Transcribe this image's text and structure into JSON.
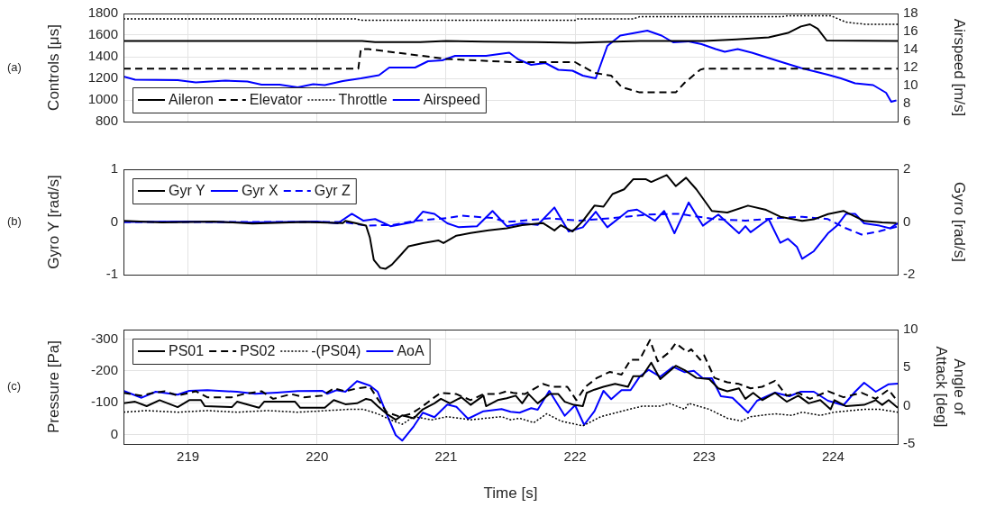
{
  "chart_data": [
    {
      "type": "line",
      "ylabel": "Controls [μs]",
      "y2label": "Airspeed [m/s]",
      "annotations": [
        "(a)"
      ],
      "xlim": [
        218.5,
        224.5
      ],
      "xticks": [
        219,
        220,
        221,
        222,
        223,
        224
      ],
      "ylim": [
        800,
        1800
      ],
      "yticks": [
        800,
        1000,
        1200,
        1400,
        1600,
        1800
      ],
      "y2lim": [
        6,
        18
      ],
      "y2ticks": [
        6,
        8,
        10,
        12,
        14,
        16,
        18
      ],
      "grid": true,
      "legend": "bottom left",
      "tick_labels": "y",
      "series": [
        {
          "name": "Aileron",
          "color": "#000000",
          "line_style": "solid",
          "x": [
            218.5,
            220.35,
            220.45,
            220.8,
            221.0,
            221.3,
            221.7,
            222.0,
            222.5,
            223.0,
            223.25,
            223.5,
            223.65,
            223.75,
            223.82,
            223.88,
            223.95,
            224.5
          ],
          "values": [
            1545,
            1545,
            1535,
            1535,
            1545,
            1540,
            1535,
            1530,
            1545,
            1545,
            1560,
            1580,
            1620,
            1680,
            1700,
            1660,
            1550,
            1545
          ]
        },
        {
          "name": "Elevator",
          "color": "#000000",
          "line_style": "dashed",
          "x": [
            218.5,
            220.32,
            220.34,
            220.4,
            221.0,
            221.52,
            222.0,
            222.15,
            222.28,
            222.36,
            222.5,
            222.78,
            222.85,
            222.97,
            223.0,
            224.5
          ],
          "values": [
            1290,
            1290,
            1470,
            1470,
            1380,
            1350,
            1350,
            1250,
            1225,
            1120,
            1070,
            1070,
            1160,
            1280,
            1290,
            1290
          ]
        },
        {
          "name": "Throttle",
          "color": "#000000",
          "line_style": "dotted",
          "x": [
            218.5,
            220.3,
            220.35,
            222.0,
            222.02,
            222.45,
            222.5,
            223.6,
            223.65,
            223.98,
            224.1,
            224.25,
            224.5
          ],
          "values": [
            1750,
            1750,
            1737,
            1737,
            1750,
            1750,
            1770,
            1770,
            1780,
            1780,
            1720,
            1700,
            1700
          ]
        },
        {
          "name": "Airspeed",
          "color": "#0000ff",
          "line_style": "solid",
          "axis": "y2",
          "x": [
            218.5,
            218.59,
            218.92,
            219.06,
            219.29,
            219.46,
            219.57,
            219.71,
            219.85,
            219.97,
            220.06,
            220.2,
            220.34,
            220.48,
            220.56,
            220.76,
            220.86,
            220.97,
            221.07,
            221.31,
            221.49,
            221.56,
            221.66,
            221.77,
            221.87,
            221.98,
            222.06,
            222.16,
            222.25,
            222.35,
            222.56,
            222.67,
            222.76,
            222.88,
            222.98,
            223.09,
            223.16,
            223.26,
            223.37,
            223.58,
            223.75,
            223.96,
            224.06,
            224.17,
            224.31,
            224.41,
            224.45,
            224.49
          ],
          "values": [
            11.0,
            10.65,
            10.6,
            10.35,
            10.55,
            10.45,
            10.1,
            10.1,
            9.8,
            10.15,
            10.05,
            10.5,
            10.8,
            11.15,
            12.0,
            12.0,
            12.7,
            12.8,
            13.3,
            13.3,
            13.65,
            12.9,
            12.3,
            12.5,
            11.75,
            11.65,
            11.1,
            10.8,
            14.4,
            15.55,
            16.1,
            15.55,
            14.8,
            14.9,
            14.6,
            14.05,
            13.75,
            14.05,
            13.65,
            12.7,
            11.95,
            11.2,
            10.8,
            10.25,
            10.05,
            9.2,
            8.2,
            8.35
          ]
        }
      ]
    },
    {
      "type": "line",
      "ylabel": "Gyro Y [rad/s]",
      "y2label": "Gyro [rad/s]",
      "annotations": [
        "(b)"
      ],
      "xlim": [
        218.5,
        224.5
      ],
      "xticks": [
        219,
        220,
        221,
        222,
        223,
        224
      ],
      "ylim": [
        -1,
        1
      ],
      "yticks": [
        -1,
        0,
        1
      ],
      "y2lim": [
        -2,
        2
      ],
      "y2ticks": [
        -2,
        0,
        2
      ],
      "grid": true,
      "legend": "top left",
      "tick_labels": "y",
      "series": [
        {
          "name": "Gyr Y",
          "color": "#000000",
          "line_style": "solid",
          "x": [
            218.5,
            218.8,
            219.2,
            219.5,
            219.9,
            220.2,
            220.22,
            220.38,
            220.41,
            220.44,
            220.49,
            220.53,
            220.58,
            220.64,
            220.71,
            220.82,
            220.94,
            220.98,
            221.08,
            221.19,
            221.33,
            221.47,
            221.59,
            221.75,
            221.84,
            221.89,
            221.98,
            222.06,
            222.15,
            222.22,
            222.29,
            222.38,
            222.45,
            222.55,
            222.59,
            222.71,
            222.78,
            222.86,
            222.94,
            223.06,
            223.18,
            223.34,
            223.48,
            223.59,
            223.76,
            223.85,
            223.96,
            224.08,
            224.24,
            224.38,
            224.49
          ],
          "values": [
            0.02,
            -0.01,
            0.01,
            -0.03,
            0.0,
            -0.02,
            0.02,
            -0.07,
            -0.3,
            -0.72,
            -0.87,
            -0.89,
            -0.81,
            -0.65,
            -0.46,
            -0.4,
            -0.35,
            -0.4,
            -0.26,
            -0.21,
            -0.16,
            -0.12,
            -0.06,
            -0.02,
            -0.16,
            -0.06,
            -0.18,
            0.02,
            0.31,
            0.29,
            0.53,
            0.62,
            0.81,
            0.81,
            0.76,
            0.89,
            0.68,
            0.84,
            0.62,
            0.21,
            0.18,
            0.31,
            0.23,
            0.1,
            0.02,
            0.05,
            0.15,
            0.21,
            0.02,
            -0.01,
            -0.02
          ]
        },
        {
          "name": "Gyr X",
          "color": "#0000ff",
          "line_style": "solid",
          "axis": "y2",
          "x": [
            218.5,
            219.0,
            219.5,
            220.0,
            220.16,
            220.27,
            220.36,
            220.45,
            220.57,
            220.75,
            220.82,
            220.91,
            221.01,
            221.1,
            221.24,
            221.36,
            221.47,
            221.59,
            221.71,
            221.84,
            221.95,
            222.06,
            222.16,
            222.25,
            222.41,
            222.48,
            222.62,
            222.69,
            222.77,
            222.88,
            222.99,
            223.11,
            223.27,
            223.32,
            223.36,
            223.5,
            223.59,
            223.65,
            223.72,
            223.76,
            223.85,
            223.96,
            224.03,
            224.1,
            224.17,
            224.24,
            224.36,
            224.44,
            224.5
          ],
          "values": [
            0.0,
            0.02,
            -0.02,
            0.02,
            -0.05,
            0.31,
            0.05,
            0.11,
            -0.16,
            0.0,
            0.39,
            0.31,
            -0.05,
            -0.2,
            -0.16,
            0.42,
            -0.16,
            -0.05,
            -0.11,
            0.55,
            -0.36,
            -0.2,
            0.39,
            -0.2,
            0.42,
            0.47,
            0.05,
            0.42,
            -0.43,
            0.74,
            -0.14,
            0.28,
            -0.43,
            -0.16,
            -0.39,
            0.11,
            -0.79,
            -0.64,
            -0.95,
            -1.4,
            -1.11,
            -0.43,
            -0.14,
            0.31,
            0.31,
            -0.05,
            -0.14,
            -0.24,
            -0.05
          ]
        },
        {
          "name": "Gyr Z",
          "color": "#0000ff",
          "line_style": "dashed",
          "axis": "y2",
          "x": [
            218.5,
            220.2,
            220.38,
            220.59,
            220.77,
            221.01,
            221.12,
            221.36,
            221.47,
            221.8,
            222.03,
            222.27,
            222.57,
            222.8,
            223.08,
            223.32,
            223.55,
            223.76,
            223.96,
            224.08,
            224.22,
            224.36,
            224.5
          ],
          "values": [
            0.0,
            0.0,
            -0.14,
            -0.11,
            0.05,
            0.15,
            0.24,
            0.15,
            0.0,
            0.14,
            0.05,
            0.14,
            0.28,
            0.31,
            0.11,
            0.05,
            0.14,
            0.2,
            0.11,
            -0.2,
            -0.48,
            -0.35,
            -0.17
          ]
        }
      ]
    },
    {
      "type": "line",
      "xlabel": "Time [s]",
      "ylabel": "Pressure [Pa]",
      "y2label": "Angle of Attack [deg]",
      "annotations": [
        "(c)"
      ],
      "xlim": [
        218.5,
        224.5
      ],
      "xticks": [
        219,
        220,
        221,
        222,
        223,
        224
      ],
      "ylim": [
        30,
        -330
      ],
      "yticks": [
        -300,
        -200,
        -100,
        0
      ],
      "y2lim": [
        -5,
        10
      ],
      "y2ticks": [
        -5,
        0,
        5,
        10
      ],
      "grid": true,
      "legend": "top left",
      "series": [
        {
          "name": "PS01",
          "color": "#000000",
          "line_style": "solid",
          "x": [
            218.5,
            218.59,
            218.68,
            218.78,
            218.92,
            219.01,
            219.1,
            219.13,
            219.34,
            219.38,
            219.55,
            219.59,
            219.83,
            219.87,
            220.06,
            220.13,
            220.22,
            220.31,
            220.38,
            220.42,
            220.47,
            220.54,
            220.61,
            220.66,
            220.75,
            220.82,
            220.91,
            220.96,
            221.03,
            221.12,
            221.19,
            221.29,
            221.31,
            221.4,
            221.47,
            221.54,
            221.59,
            221.64,
            221.71,
            221.8,
            221.87,
            221.92,
            221.99,
            222.06,
            222.09,
            222.15,
            222.22,
            222.31,
            222.41,
            222.45,
            222.52,
            222.59,
            222.66,
            222.78,
            222.85,
            222.94,
            223.04,
            223.11,
            223.18,
            223.27,
            223.32,
            223.38,
            223.45,
            223.55,
            223.64,
            223.73,
            223.81,
            223.9,
            223.98,
            224.01,
            224.1,
            224.24,
            224.33,
            224.38,
            224.43,
            224.5
          ],
          "values": [
            -98,
            -103,
            -89,
            -108,
            -86,
            -108,
            -108,
            -89,
            -86,
            -103,
            -84,
            -103,
            -103,
            -84,
            -84,
            -108,
            -95,
            -98,
            -112,
            -108,
            -89,
            -65,
            -46,
            -60,
            -51,
            -79,
            -98,
            -112,
            -98,
            -117,
            -93,
            -122,
            -89,
            -108,
            -114,
            -122,
            -98,
            -127,
            -98,
            -127,
            -127,
            -103,
            -93,
            -89,
            -131,
            -141,
            -150,
            -159,
            -150,
            -183,
            -183,
            -226,
            -174,
            -216,
            -202,
            -178,
            -174,
            -145,
            -136,
            -145,
            -112,
            -131,
            -108,
            -131,
            -103,
            -122,
            -98,
            -108,
            -79,
            -108,
            -89,
            -93,
            -108,
            -93,
            -108,
            -84
          ]
        },
        {
          "name": "PS02",
          "color": "#000000",
          "line_style": "dashed",
          "x": [
            218.5,
            218.64,
            218.73,
            218.82,
            218.92,
            219.06,
            219.15,
            219.34,
            219.43,
            219.57,
            219.66,
            219.8,
            219.9,
            220.04,
            220.13,
            220.22,
            220.31,
            220.41,
            220.47,
            220.54,
            220.64,
            220.73,
            220.82,
            220.91,
            220.96,
            221.08,
            221.19,
            221.29,
            221.4,
            221.47,
            221.52,
            221.61,
            221.75,
            221.82,
            221.94,
            222.01,
            222.08,
            222.17,
            222.27,
            222.36,
            222.43,
            222.5,
            222.58,
            222.64,
            222.73,
            222.78,
            222.87,
            222.9,
            222.97,
            223.0,
            223.08,
            223.18,
            223.27,
            223.36,
            223.45,
            223.55,
            223.64,
            223.73,
            223.82,
            223.96,
            224.08,
            224.22,
            224.33,
            224.43,
            224.5
          ],
          "values": [
            -131,
            -122,
            -131,
            -136,
            -122,
            -136,
            -117,
            -117,
            -127,
            -136,
            -112,
            -127,
            -117,
            -122,
            -145,
            -136,
            -145,
            -150,
            -112,
            -70,
            -56,
            -65,
            -89,
            -117,
            -131,
            -127,
            -108,
            -127,
            -127,
            -136,
            -131,
            -127,
            -159,
            -150,
            -150,
            -108,
            -150,
            -178,
            -197,
            -188,
            -235,
            -235,
            -297,
            -230,
            -259,
            -287,
            -259,
            -268,
            -235,
            -249,
            -178,
            -164,
            -159,
            -145,
            -150,
            -169,
            -122,
            -131,
            -112,
            -136,
            -117,
            -131,
            -112,
            -141,
            -103
          ]
        },
        {
          "name": "-(PS04)",
          "color": "#000000",
          "line_style": "dotted",
          "x": [
            218.5,
            218.68,
            218.92,
            219.15,
            219.38,
            219.62,
            219.85,
            220.08,
            220.24,
            220.36,
            220.47,
            220.57,
            220.66,
            220.75,
            220.89,
            221.01,
            221.19,
            221.43,
            221.5,
            221.57,
            221.68,
            221.78,
            221.89,
            222.06,
            222.2,
            222.38,
            222.52,
            222.66,
            222.73,
            222.85,
            222.88,
            223.04,
            223.18,
            223.29,
            223.36,
            223.55,
            223.68,
            223.76,
            223.9,
            224.01,
            224.24,
            224.36,
            224.5
          ],
          "values": [
            -70,
            -75,
            -70,
            -75,
            -70,
            -75,
            -70,
            -75,
            -79,
            -79,
            -65,
            -46,
            -32,
            -56,
            -46,
            -56,
            -46,
            -56,
            -46,
            -51,
            -37,
            -65,
            -42,
            -27,
            -56,
            -75,
            -89,
            -89,
            -98,
            -79,
            -98,
            -79,
            -51,
            -42,
            -56,
            -65,
            -60,
            -70,
            -60,
            -70,
            -79,
            -79,
            -70
          ]
        },
        {
          "name": "AoA",
          "color": "#0000ff",
          "line_style": "solid",
          "axis": "y2",
          "x": [
            218.5,
            218.64,
            218.75,
            218.92,
            219.01,
            219.15,
            219.38,
            219.52,
            219.69,
            219.85,
            220.04,
            220.08,
            220.15,
            220.22,
            220.31,
            220.41,
            220.47,
            220.54,
            220.61,
            220.66,
            220.75,
            220.82,
            220.91,
            221.01,
            221.08,
            221.17,
            221.29,
            221.43,
            221.5,
            221.57,
            221.66,
            221.71,
            221.8,
            221.92,
            222.0,
            222.07,
            222.15,
            222.22,
            222.28,
            222.36,
            222.43,
            222.5,
            222.57,
            222.66,
            222.76,
            222.85,
            222.92,
            222.99,
            223.06,
            223.13,
            223.22,
            223.34,
            223.41,
            223.55,
            223.66,
            223.75,
            223.85,
            223.96,
            224.08,
            224.17,
            224.24,
            224.33,
            224.43,
            224.5
          ],
          "values": [
            1.97,
            1.06,
            1.85,
            1.46,
            1.97,
            2.05,
            1.85,
            1.58,
            1.73,
            1.93,
            1.97,
            1.58,
            2.05,
            1.85,
            3.23,
            2.64,
            1.85,
            -1.1,
            -3.85,
            -4.56,
            -2.67,
            -0.9,
            -1.49,
            0.16,
            -0.12,
            -1.69,
            -0.71,
            -0.43,
            -0.78,
            -0.9,
            -0.31,
            -0.51,
            1.97,
            -1.3,
            0.08,
            -2.49,
            -0.71,
            1.97,
            0.87,
            2.05,
            2.05,
            3.82,
            4.72,
            3.82,
            5.12,
            4.41,
            4.6,
            3.62,
            3.62,
            1.26,
            1.06,
            -0.9,
            0.67,
            1.73,
            1.26,
            1.85,
            1.85,
            0.67,
            0.08,
            1.85,
            3.03,
            1.85,
            2.83,
            2.91
          ]
        }
      ]
    }
  ]
}
